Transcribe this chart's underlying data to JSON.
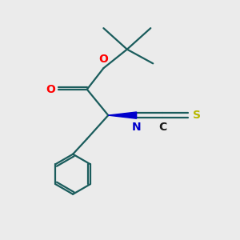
{
  "bg_color": "#ebebeb",
  "bond_color": "#1a5c5c",
  "o_color": "#ff0000",
  "n_color": "#0000cc",
  "s_color": "#b8b800",
  "c_color": "#1a1a1a",
  "lw": 1.6,
  "xlim": [
    0,
    10
  ],
  "ylim": [
    0,
    10
  ]
}
